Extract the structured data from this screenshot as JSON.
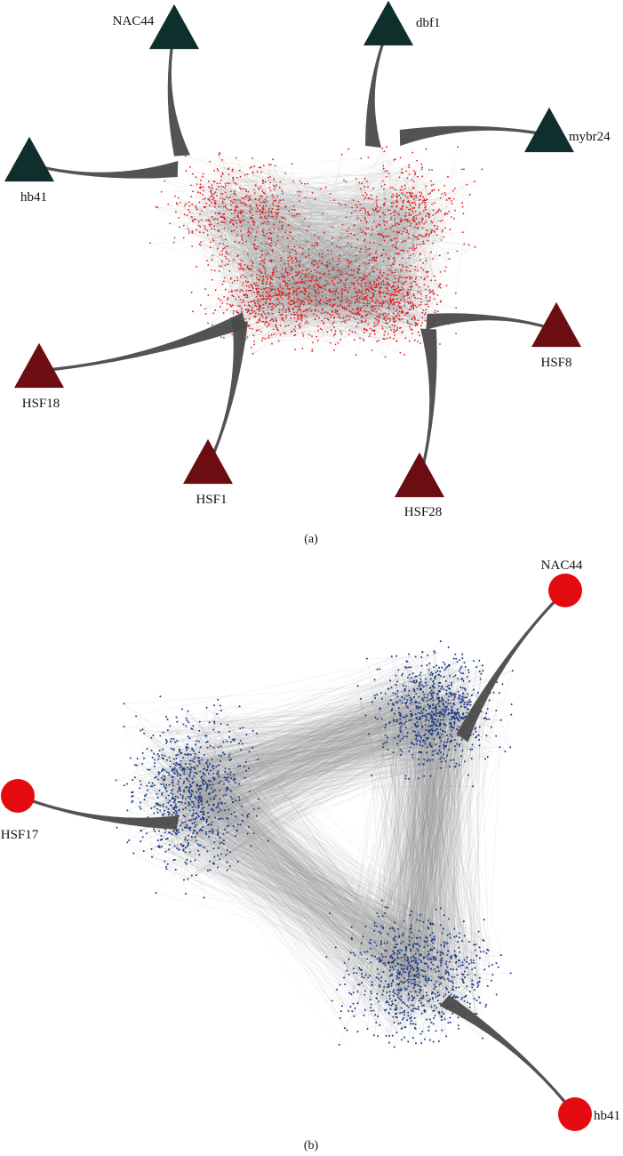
{
  "figure": {
    "panels": [
      {
        "id": "a",
        "label": "(a)",
        "colors": {
          "core_node": "#e31a1c",
          "core_edge": "#8a8a8a",
          "hub_edge": "#4a4a4a"
        },
        "hubs": [
          {
            "id": "nac44",
            "label": "NAC44",
            "shape": "triangle",
            "color": "#0f2f2c"
          },
          {
            "id": "dbf1",
            "label": "dbf1",
            "shape": "triangle",
            "color": "#0f2f2c"
          },
          {
            "id": "mybr24",
            "label": "mybr24",
            "shape": "triangle",
            "color": "#0f2f2c"
          },
          {
            "id": "hb41",
            "label": "hb41",
            "shape": "triangle",
            "color": "#0f2f2c"
          },
          {
            "id": "hsf18",
            "label": "HSF18",
            "shape": "triangle",
            "color": "#6b0d12"
          },
          {
            "id": "hsf1",
            "label": "HSF1",
            "shape": "triangle",
            "color": "#6b0d12"
          },
          {
            "id": "hsf28",
            "label": "HSF28",
            "shape": "triangle",
            "color": "#6b0d12"
          },
          {
            "id": "hsf8",
            "label": "HSF8",
            "shape": "triangle",
            "color": "#6b0d12"
          }
        ]
      },
      {
        "id": "b",
        "label": "(b)",
        "colors": {
          "core_node": "#1a3a8a",
          "core_edge": "#8a8a8a",
          "hub_edge": "#4a4a4a"
        },
        "hubs": [
          {
            "id": "nac44",
            "label": "NAC44",
            "shape": "circle",
            "color": "#e30b10"
          },
          {
            "id": "hsf17",
            "label": "HSF17",
            "shape": "circle",
            "color": "#e30b10"
          },
          {
            "id": "hb41",
            "label": "hb41",
            "shape": "circle",
            "color": "#e30b10"
          }
        ]
      }
    ]
  }
}
